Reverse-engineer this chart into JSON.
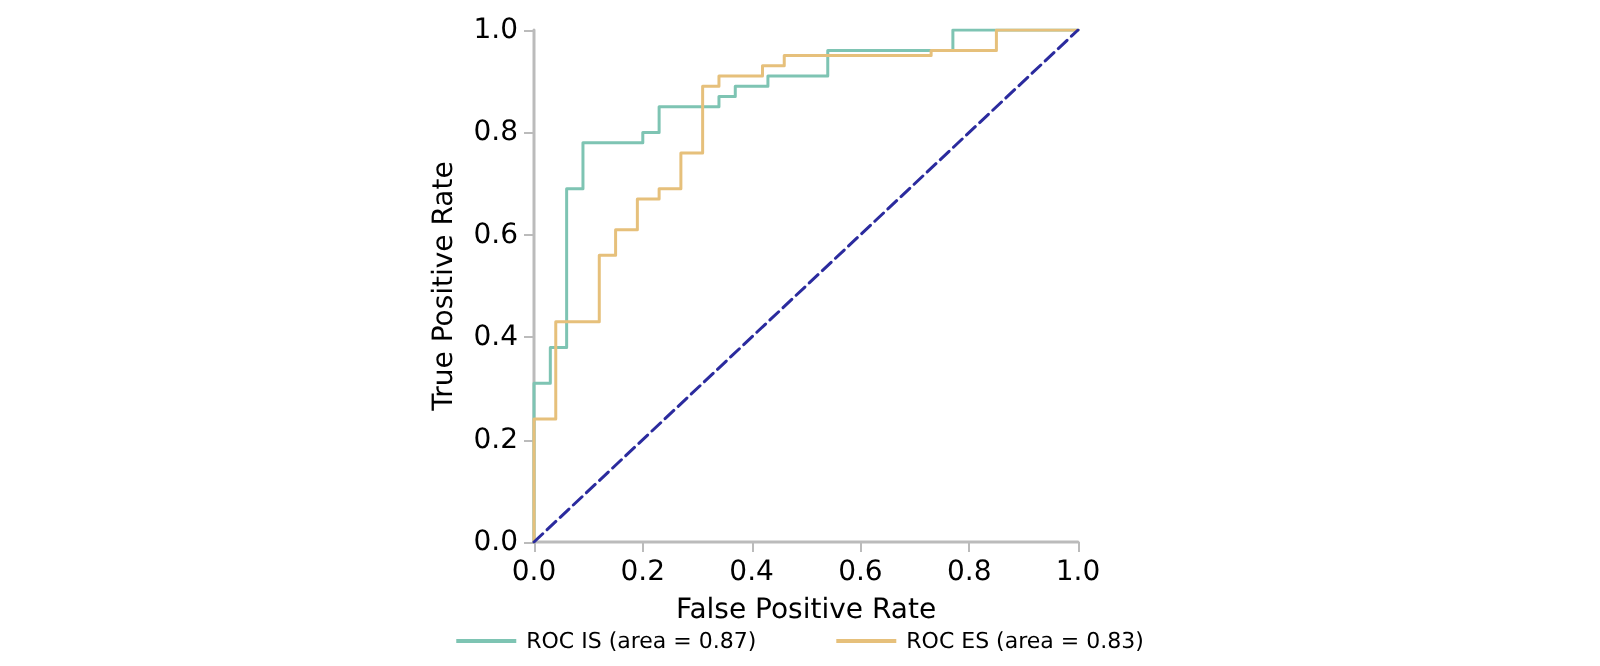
{
  "chart_data": {
    "type": "step",
    "xlabel": "False Positive Rate",
    "ylabel": "True Positive Rate",
    "xlim": [
      0,
      1
    ],
    "ylim": [
      0,
      1
    ],
    "xticks": [
      {
        "value": 0,
        "label": "0.0"
      },
      {
        "value": 0.2,
        "label": "0.2"
      },
      {
        "value": 0.4,
        "label": "0.4"
      },
      {
        "value": 0.6,
        "label": "0.6"
      },
      {
        "value": 0.8,
        "label": "0.8"
      },
      {
        "value": 1,
        "label": "1.0"
      }
    ],
    "yticks": [
      {
        "value": 0,
        "label": "0.0"
      },
      {
        "value": 0.2,
        "label": "0.2"
      },
      {
        "value": 0.4,
        "label": "0.4"
      },
      {
        "value": 0.6,
        "label": "0.6"
      },
      {
        "value": 0.8,
        "label": "0.8"
      },
      {
        "value": 1,
        "label": "1.0"
      }
    ],
    "grid": false,
    "legend": "bottom",
    "marker": "none",
    "series": [
      {
        "name": "ROC IS (area = 0.87)",
        "color": "#7ec4b3",
        "x": [
          0,
          0,
          0.03,
          0.06,
          0.09,
          0.2,
          0.23,
          0.34,
          0.37,
          0.43,
          0.54,
          0.77,
          1
        ],
        "values": [
          0,
          0.31,
          0.38,
          0.69,
          0.78,
          0.8,
          0.85,
          0.87,
          0.89,
          0.91,
          0.96,
          1,
          1
        ]
      },
      {
        "name": "ROC ES (area = 0.83)",
        "color": "#e6c07b",
        "x": [
          0,
          0,
          0.04,
          0.12,
          0.15,
          0.19,
          0.23,
          0.27,
          0.31,
          0.34,
          0.42,
          0.46,
          0.73,
          0.85,
          1
        ],
        "values": [
          0,
          0.24,
          0.43,
          0.56,
          0.61,
          0.67,
          0.69,
          0.76,
          0.89,
          0.91,
          0.93,
          0.95,
          0.96,
          1,
          1
        ]
      },
      {
        "type": "line",
        "color": "#2b2b9e",
        "line_style": "dashed",
        "x": [
          0,
          1
        ],
        "values": [
          0,
          1
        ]
      }
    ]
  }
}
